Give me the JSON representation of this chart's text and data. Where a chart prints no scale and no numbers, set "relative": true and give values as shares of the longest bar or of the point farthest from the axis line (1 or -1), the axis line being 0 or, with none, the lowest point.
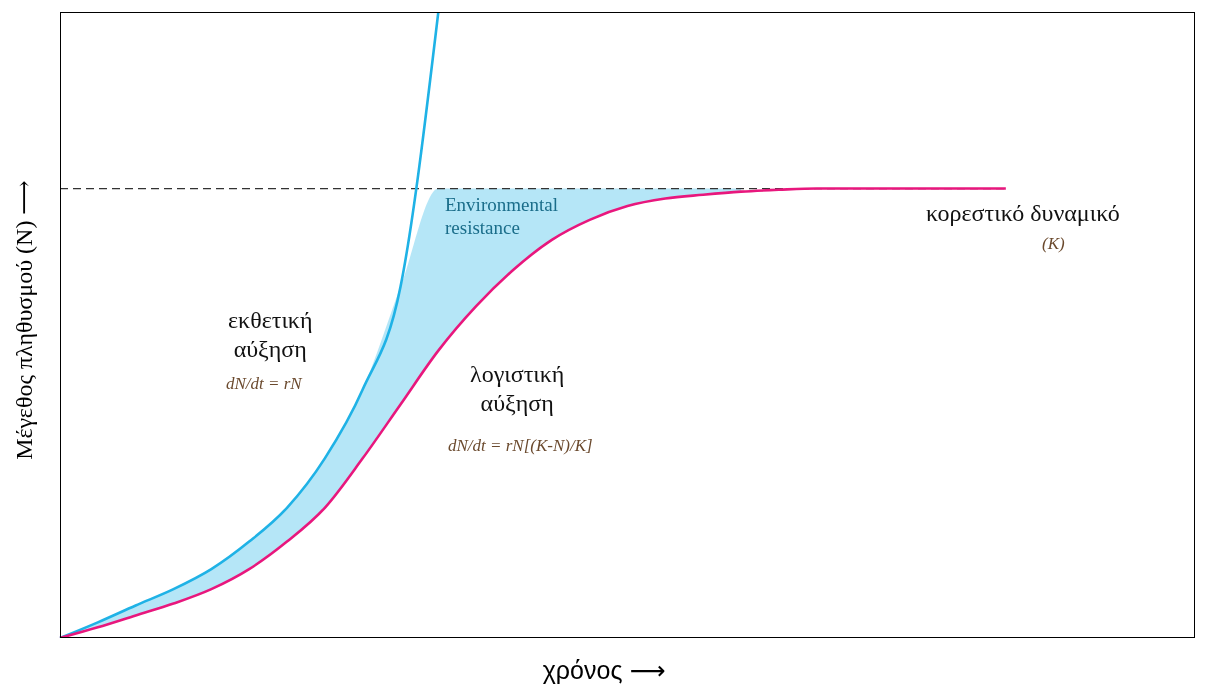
{
  "chart_data": {
    "type": "line",
    "relative": true,
    "marker": "none",
    "xlabel": "χρόνος ⟶",
    "ylabel": "Μέγεθος πληθυσμού (N) ⟶",
    "categories": [
      null,
      null,
      null,
      null,
      null,
      null,
      null,
      null,
      null,
      null,
      null,
      null,
      null,
      null,
      null,
      null,
      null,
      null,
      null,
      null,
      null,
      null,
      null,
      null,
      null,
      null,
      null,
      null,
      null,
      null,
      null
    ],
    "series": [
      {
        "name": "εκθετική αύξηση",
        "color": "#1fb2e6",
        "values": [
          0,
          0.025,
          0.052,
          0.078,
          0.11,
          0.154,
          0.208,
          0.287,
          0.397,
          0.561,
          1,
          null,
          null,
          null,
          null,
          null,
          null,
          null,
          null,
          null,
          null,
          null,
          null,
          null,
          null,
          null,
          null,
          null,
          null,
          null,
          null
        ],
        "lower": [
          0,
          0.017,
          0.036,
          0.055,
          0.078,
          0.11,
          0.154,
          0.208,
          0.287,
          0.373,
          0.459,
          0.53,
          0.589,
          0.636,
          0.668,
          0.69,
          0.702,
          0.708,
          0.713,
          null,
          null,
          null,
          null,
          null,
          null,
          null,
          null,
          null,
          null,
          null,
          null
        ],
        "upper": [
          0,
          0.025,
          0.052,
          0.078,
          0.11,
          0.154,
          0.208,
          0.287,
          0.397,
          0.561,
          0.718,
          0.718,
          0.718,
          0.718,
          0.718,
          0.718,
          0.718,
          0.718,
          0.718,
          null,
          null,
          null,
          null,
          null,
          null,
          null,
          null,
          null,
          null,
          null,
          null
        ]
      },
      {
        "name": "λογιστική αύξηση",
        "color": "#e8177d",
        "values": [
          0,
          0.017,
          0.036,
          0.055,
          0.078,
          0.11,
          0.154,
          0.208,
          0.287,
          0.373,
          0.459,
          0.53,
          0.589,
          0.636,
          0.668,
          0.69,
          0.702,
          0.708,
          0.713,
          0.716,
          0.718,
          0.718,
          0.718,
          0.718,
          0.718,
          0.718,
          null,
          null,
          null,
          null,
          null
        ]
      }
    ],
    "ref_lines": [
      {
        "axis": "y",
        "value": 0.718,
        "label": "κορεστικό δυναμικό",
        "color": "#333333",
        "line_style": "dashed"
      }
    ],
    "annotations": [
      "Environmental resistance",
      "dN/dt = rN",
      "dN/dt = rN[(K-N)/K]",
      "(K)"
    ]
  }
}
